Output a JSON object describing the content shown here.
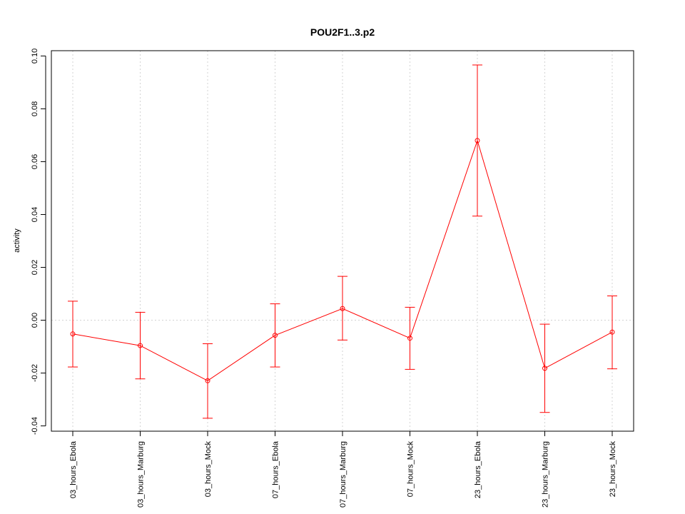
{
  "chart_data": {
    "type": "line",
    "title": "POU2F1..3.p2",
    "xlabel": "",
    "ylabel": "activity",
    "ylim": [
      -0.042,
      0.102
    ],
    "yticks": [
      -0.04,
      -0.02,
      0.0,
      0.02,
      0.04,
      0.06,
      0.08,
      0.1
    ],
    "ytick_labels": [
      "-0.04",
      "-0.02",
      "0.00",
      "0.02",
      "0.04",
      "0.06",
      "0.08",
      "0.10"
    ],
    "grid": true,
    "color": "#ff0000",
    "categories": [
      "03_hours_Ebola",
      "03_hours_Marburg",
      "03_hours_Mock",
      "07_hours_Ebola",
      "07_hours_Marburg",
      "07_hours_Mock",
      "23_hours_Ebola",
      "23_hours_Marburg",
      "23_hours_Mock"
    ],
    "series": [
      {
        "values": [
          -0.0052,
          -0.0096,
          -0.0229,
          -0.0057,
          0.0044,
          -0.0068,
          0.068,
          -0.0182,
          -0.0045
        ],
        "error_upper": [
          0.0072,
          0.003,
          -0.0089,
          0.0062,
          0.0166,
          0.0049,
          0.0966,
          -0.0015,
          0.0092
        ],
        "error_lower": [
          -0.0177,
          -0.0222,
          -0.0371,
          -0.0177,
          -0.0075,
          -0.0186,
          0.0394,
          -0.0349,
          -0.0184
        ]
      }
    ]
  }
}
